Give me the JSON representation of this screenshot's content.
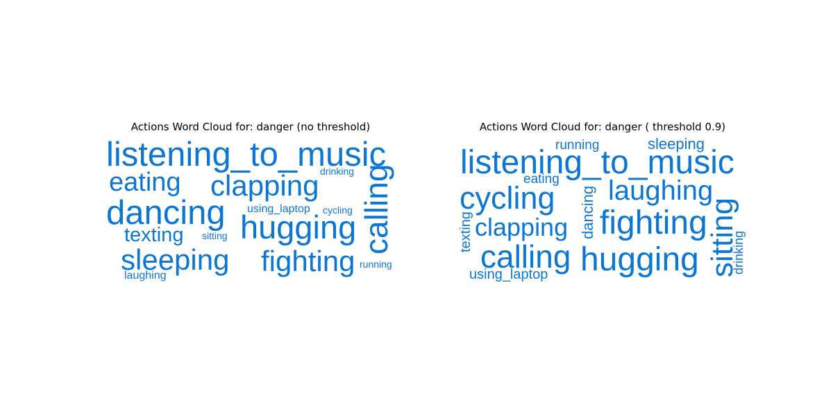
{
  "chart_data": [
    {
      "type": "wordcloud",
      "title": "Actions Word Cloud for: danger (no threshold)",
      "color": "#0b76d4",
      "words": [
        {
          "text": "listening_to_music",
          "rotated": false
        },
        {
          "text": "eating",
          "rotated": false
        },
        {
          "text": "clapping",
          "rotated": false
        },
        {
          "text": "drinking",
          "rotated": false
        },
        {
          "text": "calling",
          "rotated": true
        },
        {
          "text": "dancing",
          "rotated": false
        },
        {
          "text": "using_laptop",
          "rotated": false
        },
        {
          "text": "cycling",
          "rotated": false
        },
        {
          "text": "hugging",
          "rotated": false
        },
        {
          "text": "texting",
          "rotated": false
        },
        {
          "text": "sitting",
          "rotated": false
        },
        {
          "text": "sleeping",
          "rotated": false
        },
        {
          "text": "fighting",
          "rotated": false
        },
        {
          "text": "running",
          "rotated": false
        },
        {
          "text": "laughing",
          "rotated": false
        }
      ]
    },
    {
      "type": "wordcloud",
      "title": "Actions Word Cloud for: danger ( threshold 0.9)",
      "color": "#0b76d4",
      "words": [
        {
          "text": "running",
          "rotated": false
        },
        {
          "text": "sleeping",
          "rotated": false
        },
        {
          "text": "listening_to_music",
          "rotated": false
        },
        {
          "text": "eating",
          "rotated": false
        },
        {
          "text": "cycling",
          "rotated": false
        },
        {
          "text": "dancing",
          "rotated": true
        },
        {
          "text": "laughing",
          "rotated": false
        },
        {
          "text": "texting",
          "rotated": true
        },
        {
          "text": "clapping",
          "rotated": false
        },
        {
          "text": "fighting",
          "rotated": false
        },
        {
          "text": "sitting",
          "rotated": true
        },
        {
          "text": "drinking",
          "rotated": true
        },
        {
          "text": "calling",
          "rotated": false
        },
        {
          "text": "hugging",
          "rotated": false
        },
        {
          "text": "using_laptop",
          "rotated": false
        }
      ]
    }
  ]
}
